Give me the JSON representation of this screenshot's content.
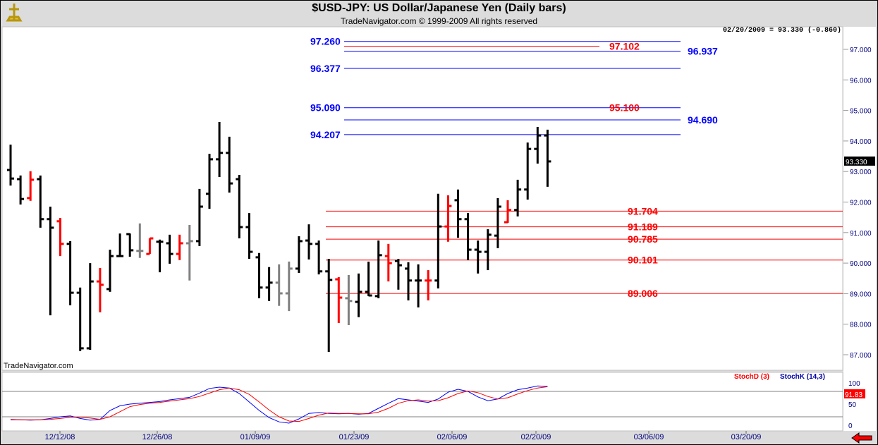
{
  "header": {
    "title": "$USD-JPY:  US Dollar/Japanese Yen  (Daily bars)",
    "subtitle": "TradeNavigator.com © 1999-2009 All rights reserved",
    "stamp": "02/20/2009 = 93.330 (-0.860)",
    "watermark": "TradeNavigator.com"
  },
  "colors": {
    "blue": "#0000ff",
    "red": "#ff0000",
    "bar": "#000000",
    "gray": "#808080"
  },
  "chart_data": [
    {
      "type": "ohlc",
      "title": "$USD-JPY:  US Dollar/Japanese Yen  (Daily bars)",
      "ylim": [
        86.7,
        97.7
      ],
      "yticks": [
        "97.000",
        "96.000",
        "95.000",
        "94.000",
        "93.000",
        "92.000",
        "91.000",
        "90.000",
        "89.000",
        "88.000",
        "87.000"
      ],
      "last_price": "93.330",
      "xticks": [
        "12/12/08",
        "12/26/08",
        "01/09/09",
        "01/23/09",
        "02/06/09",
        "02/20/09",
        "03/06/09",
        "03/20/09"
      ],
      "bars": [
        [
          93.05,
          93.88,
          92.54,
          92.77,
          "k"
        ],
        [
          92.75,
          92.87,
          91.92,
          92.1,
          "k"
        ],
        [
          92.13,
          93.01,
          92.04,
          92.73,
          "r"
        ],
        [
          92.75,
          92.87,
          91.16,
          91.44,
          "k"
        ],
        [
          91.44,
          91.85,
          88.29,
          91.16,
          "k"
        ],
        [
          91.37,
          91.48,
          90.23,
          90.63,
          "r"
        ],
        [
          90.63,
          90.72,
          88.62,
          89.03,
          "k"
        ],
        [
          89.03,
          89.2,
          87.12,
          87.21,
          "k"
        ],
        [
          87.21,
          90.0,
          87.16,
          89.4,
          "k"
        ],
        [
          89.4,
          89.84,
          88.39,
          89.29,
          "r"
        ],
        [
          89.15,
          90.44,
          89.06,
          90.23,
          "k"
        ],
        [
          90.23,
          90.97,
          90.21,
          90.23,
          "k"
        ],
        [
          90.95,
          90.97,
          90.21,
          90.42,
          "k"
        ],
        [
          90.4,
          91.3,
          90.17,
          90.4,
          "g"
        ],
        [
          90.3,
          90.81,
          90.3,
          90.81,
          "r"
        ],
        [
          90.7,
          90.77,
          89.7,
          90.7,
          "k"
        ],
        [
          90.65,
          90.93,
          89.98,
          90.3,
          "k"
        ],
        [
          90.3,
          90.93,
          90.1,
          90.65,
          "r"
        ],
        [
          90.65,
          91.25,
          89.43,
          90.72,
          "g"
        ],
        [
          90.72,
          92.43,
          90.56,
          91.85,
          "k"
        ],
        [
          92.27,
          93.58,
          91.78,
          93.4,
          "k"
        ],
        [
          93.4,
          94.62,
          92.82,
          93.61,
          "k"
        ],
        [
          93.61,
          94.14,
          92.31,
          92.61,
          "k"
        ],
        [
          92.75,
          92.89,
          90.81,
          91.18,
          "k"
        ],
        [
          91.18,
          91.64,
          90.14,
          90.37,
          "k"
        ],
        [
          90.19,
          90.33,
          88.85,
          89.2,
          "k"
        ],
        [
          89.2,
          89.87,
          88.76,
          89.36,
          "k"
        ],
        [
          89.36,
          89.96,
          88.6,
          89.01,
          "g"
        ],
        [
          89.01,
          90.05,
          88.43,
          89.82,
          "g"
        ],
        [
          89.82,
          90.88,
          89.68,
          90.72,
          "k"
        ],
        [
          90.74,
          91.27,
          90.12,
          90.63,
          "k"
        ],
        [
          90.63,
          90.74,
          89.63,
          89.73,
          "k"
        ],
        [
          89.73,
          90.14,
          87.09,
          89.45,
          "k"
        ],
        [
          89.47,
          89.54,
          88.04,
          88.87,
          "r"
        ],
        [
          88.85,
          89.61,
          87.97,
          88.76,
          "g"
        ],
        [
          88.73,
          89.66,
          88.23,
          89.06,
          "k"
        ],
        [
          89.06,
          90.05,
          88.92,
          88.94,
          "k"
        ],
        [
          88.92,
          90.74,
          88.85,
          90.26,
          "k"
        ],
        [
          90.23,
          90.63,
          89.4,
          90.0,
          "r"
        ],
        [
          90.07,
          90.14,
          89.13,
          89.93,
          "k"
        ],
        [
          89.82,
          90.03,
          88.78,
          89.43,
          "k"
        ],
        [
          89.43,
          89.96,
          88.55,
          89.43,
          "k"
        ],
        [
          89.43,
          89.77,
          88.78,
          89.43,
          "r"
        ],
        [
          89.43,
          92.27,
          89.17,
          91.2,
          "k"
        ],
        [
          91.2,
          92.22,
          90.7,
          91.87,
          "r"
        ],
        [
          92.06,
          92.41,
          90.83,
          91.44,
          "k"
        ],
        [
          91.44,
          91.64,
          90.1,
          90.44,
          "k"
        ],
        [
          90.44,
          90.74,
          89.66,
          90.37,
          "k"
        ],
        [
          90.37,
          91.11,
          89.77,
          90.93,
          "k"
        ],
        [
          90.9,
          92.13,
          90.49,
          91.85,
          "k"
        ],
        [
          91.34,
          92.06,
          91.32,
          91.74,
          "r"
        ],
        [
          91.74,
          92.73,
          91.53,
          92.41,
          "k"
        ],
        [
          92.41,
          93.95,
          92.08,
          93.74,
          "k"
        ],
        [
          93.74,
          94.46,
          93.26,
          94.18,
          "k"
        ],
        [
          94.18,
          94.37,
          92.5,
          93.33,
          "k"
        ]
      ],
      "levels": [
        {
          "label": "97.260",
          "value": 97.26,
          "color": "blue",
          "side": "left"
        },
        {
          "label": "97.102",
          "value": 97.102,
          "color": "red",
          "side": "mid"
        },
        {
          "label": "96.937",
          "value": 96.937,
          "color": "blue",
          "side": "right"
        },
        {
          "label": "96.377",
          "value": 96.377,
          "color": "blue",
          "side": "left"
        },
        {
          "label": "95.090",
          "value": 95.09,
          "color": "blue",
          "side": "left"
        },
        {
          "label": "95.100",
          "value": 95.1,
          "color": "red",
          "side": "mid"
        },
        {
          "label": "94.690",
          "value": 94.69,
          "color": "blue",
          "side": "right"
        },
        {
          "label": "94.207",
          "value": 94.207,
          "color": "blue",
          "side": "left"
        },
        {
          "label": "91.704",
          "value": 91.704,
          "color": "red",
          "side": "low"
        },
        {
          "label": "91.189",
          "value": 91.189,
          "color": "red",
          "side": "low"
        },
        {
          "label": "90.785",
          "value": 90.785,
          "color": "red",
          "side": "low"
        },
        {
          "label": "90.101",
          "value": 90.101,
          "color": "red",
          "side": "low"
        },
        {
          "label": "89.006",
          "value": 89.006,
          "color": "red",
          "side": "low"
        }
      ]
    },
    {
      "type": "line",
      "legend": [
        "StochD (3)",
        "StochK (14,3)"
      ],
      "ylim": [
        0,
        100
      ],
      "yticks": [
        "0",
        "50",
        "100"
      ],
      "guides": [
        80,
        20
      ],
      "last_value": "91.83",
      "stochK": [
        13,
        13,
        12,
        13,
        16,
        20,
        22,
        16,
        12,
        14,
        35,
        46,
        50,
        52,
        54,
        56,
        60,
        63,
        66,
        76,
        87,
        90,
        88,
        75,
        55,
        35,
        18,
        8,
        5,
        15,
        28,
        30,
        28,
        27,
        28,
        26,
        28,
        40,
        52,
        63,
        60,
        57,
        54,
        62,
        78,
        85,
        80,
        67,
        58,
        62,
        75,
        84,
        88,
        93,
        91.8
      ],
      "stochD": [
        14,
        13,
        13,
        13,
        14,
        16,
        19,
        19,
        17,
        14,
        20,
        32,
        44,
        49,
        52,
        54,
        57,
        60,
        63,
        68,
        76,
        84,
        88,
        84,
        73,
        55,
        36,
        20,
        10,
        9,
        16,
        24,
        29,
        28,
        28,
        27,
        27,
        31,
        40,
        52,
        58,
        60,
        57,
        58,
        65,
        75,
        81,
        77,
        68,
        62,
        65,
        74,
        82,
        88,
        91
      ]
    }
  ]
}
